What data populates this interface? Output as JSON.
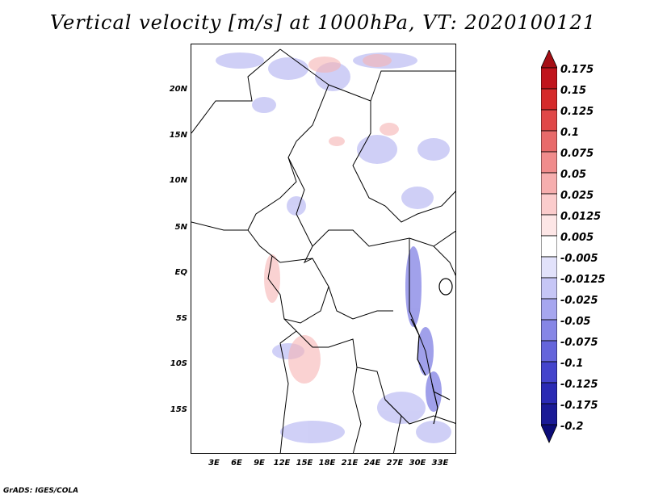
{
  "title": "Vertical velocity [m/s] at 1000hPa, VT: 2020100121",
  "footer": "GrADS: IGES/COLA",
  "lat_labels": [
    "20N",
    "15N",
    "10N",
    "5N",
    "EQ",
    "5S",
    "10S",
    "15S"
  ],
  "lon_labels": [
    "3E",
    "6E",
    "9E",
    "12E",
    "15E",
    "18E",
    "21E",
    "24E",
    "27E",
    "30E",
    "33E"
  ],
  "colorbar": {
    "labels": [
      "0.175",
      "0.15",
      "0.125",
      "0.1",
      "0.075",
      "0.05",
      "0.025",
      "0.0125",
      "0.005",
      "-0.005",
      "-0.0125",
      "-0.025",
      "-0.05",
      "-0.075",
      "-0.1",
      "-0.125",
      "-0.175",
      "-0.2"
    ],
    "colors": [
      "#a50f15",
      "#c0141c",
      "#d52a2a",
      "#e04848",
      "#e86a6a",
      "#f08c8c",
      "#f6aeae",
      "#fbcccc",
      "#fde6e6",
      "#ffffff",
      "#e2e2fb",
      "#c6c6f6",
      "#a6a6ef",
      "#8686e6",
      "#6464db",
      "#4444cc",
      "#2a2ab4",
      "#1a1a96",
      "#0c0c78"
    ]
  }
}
